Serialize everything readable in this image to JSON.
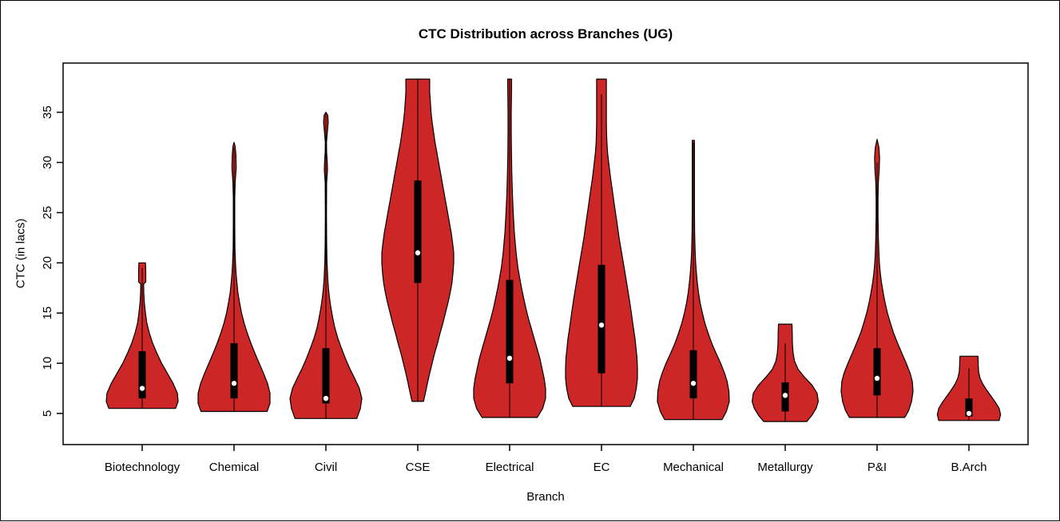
{
  "chart_data": {
    "type": "violin",
    "title": "CTC Distribution across Branches (UG)",
    "xlabel": "Branch",
    "ylabel": "CTC (in lacs)",
    "categories": [
      "Biotechnology",
      "Chemical",
      "Civil",
      "CSE",
      "Electrical",
      "EC",
      "Mechanical",
      "Metallurgy",
      "P&I",
      "B.Arch"
    ],
    "yticks": [
      5,
      10,
      15,
      20,
      25,
      30,
      35
    ],
    "ylim": [
      1.9,
      39.9
    ],
    "grid": false,
    "legend": null,
    "colors": {
      "violin_fill": "#CD2626",
      "violin_border": "#000000",
      "box": "#000000",
      "whisker": "#000000",
      "median_dot": "#ffffff",
      "frame": "#000000",
      "text": "#000000"
    },
    "series": [
      {
        "branch": "Biotechnology",
        "range": [
          5.5,
          20
        ],
        "q1": 6.5,
        "q3": 11.2,
        "median": 7.5,
        "whiskers": [
          5.5,
          19.5
        ],
        "profile": [
          [
            5.5,
            0.93
          ],
          [
            6.2,
            1.0
          ],
          [
            7.0,
            0.98
          ],
          [
            8,
            0.86
          ],
          [
            9,
            0.7
          ],
          [
            10,
            0.54
          ],
          [
            11,
            0.41
          ],
          [
            12,
            0.29
          ],
          [
            13,
            0.2
          ],
          [
            14,
            0.13
          ],
          [
            15,
            0.09
          ],
          [
            16,
            0.06
          ],
          [
            17,
            0.045
          ],
          [
            17.9,
            0.04
          ],
          [
            18.1,
            0.1
          ],
          [
            19.2,
            0.1
          ],
          [
            20,
            0.09
          ]
        ]
      },
      {
        "branch": "Chemical",
        "range": [
          5.2,
          32
        ],
        "q1": 6.5,
        "q3": 12,
        "median": 8,
        "whiskers": [
          5.2,
          31.5
        ],
        "profile": [
          [
            5.2,
            0.92
          ],
          [
            6,
            1.0
          ],
          [
            7,
            1.0
          ],
          [
            8,
            0.93
          ],
          [
            9,
            0.82
          ],
          [
            10,
            0.7
          ],
          [
            11,
            0.58
          ],
          [
            12,
            0.47
          ],
          [
            13,
            0.37
          ],
          [
            14,
            0.28
          ],
          [
            15,
            0.21
          ],
          [
            16,
            0.155
          ],
          [
            17,
            0.11
          ],
          [
            18,
            0.08
          ],
          [
            19,
            0.055
          ],
          [
            20,
            0.04
          ],
          [
            21.5,
            0.025
          ],
          [
            24,
            0.02
          ],
          [
            26.5,
            0.02
          ],
          [
            28,
            0.03
          ],
          [
            29.5,
            0.06
          ],
          [
            30.8,
            0.05
          ],
          [
            31.6,
            0.03
          ],
          [
            32,
            0.0
          ]
        ]
      },
      {
        "branch": "Civil",
        "range": [
          4.5,
          35
        ],
        "q1": 6,
        "q3": 11.5,
        "median": 6.5,
        "whiskers": [
          4.5,
          34.8
        ],
        "profile": [
          [
            4.5,
            0.86
          ],
          [
            5.5,
            0.96
          ],
          [
            6.5,
            1.0
          ],
          [
            7.5,
            0.93
          ],
          [
            8.5,
            0.8
          ],
          [
            9.5,
            0.66
          ],
          [
            10.5,
            0.54
          ],
          [
            11.5,
            0.43
          ],
          [
            12.5,
            0.33
          ],
          [
            13.5,
            0.25
          ],
          [
            14.5,
            0.19
          ],
          [
            15.5,
            0.14
          ],
          [
            16.5,
            0.1
          ],
          [
            17.5,
            0.07
          ],
          [
            18.5,
            0.05
          ],
          [
            20,
            0.03
          ],
          [
            22,
            0.02
          ],
          [
            25,
            0.015
          ],
          [
            28,
            0.02
          ],
          [
            29.3,
            0.045
          ],
          [
            30.2,
            0.035
          ],
          [
            31,
            0.02
          ],
          [
            32,
            0.015
          ],
          [
            33,
            0.04
          ],
          [
            34,
            0.065
          ],
          [
            34.7,
            0.05
          ],
          [
            35,
            0.0
          ]
        ]
      },
      {
        "branch": "CSE",
        "range": [
          6.2,
          38.3
        ],
        "q1": 18,
        "q3": 28.2,
        "median": 21,
        "whiskers": [
          6.2,
          38.3
        ],
        "profile": [
          [
            6.2,
            0.16
          ],
          [
            7,
            0.21
          ],
          [
            8,
            0.27
          ],
          [
            9,
            0.33
          ],
          [
            10,
            0.4
          ],
          [
            11,
            0.47
          ],
          [
            12,
            0.55
          ],
          [
            13,
            0.62
          ],
          [
            14,
            0.7
          ],
          [
            15,
            0.77
          ],
          [
            16,
            0.84
          ],
          [
            17,
            0.9
          ],
          [
            18,
            0.95
          ],
          [
            19,
            0.98
          ],
          [
            20,
            1.0
          ],
          [
            21,
            1.0
          ],
          [
            22,
            0.97
          ],
          [
            23,
            0.93
          ],
          [
            24,
            0.88
          ],
          [
            25,
            0.83
          ],
          [
            26,
            0.78
          ],
          [
            27,
            0.73
          ],
          [
            28,
            0.68
          ],
          [
            29,
            0.63
          ],
          [
            30,
            0.58
          ],
          [
            31,
            0.53
          ],
          [
            32,
            0.48
          ],
          [
            33,
            0.44
          ],
          [
            34,
            0.4
          ],
          [
            35,
            0.37
          ],
          [
            36,
            0.35
          ],
          [
            37,
            0.33
          ],
          [
            38.3,
            0.33
          ]
        ]
      },
      {
        "branch": "Electrical",
        "range": [
          4.6,
          38.3
        ],
        "q1": 8,
        "q3": 18.3,
        "median": 10.5,
        "whiskers": [
          4.6,
          38.3
        ],
        "profile": [
          [
            4.6,
            0.77
          ],
          [
            5.5,
            0.92
          ],
          [
            6.5,
            1.0
          ],
          [
            7.5,
            1.0
          ],
          [
            8.5,
            0.96
          ],
          [
            9.5,
            0.9
          ],
          [
            10.5,
            0.84
          ],
          [
            11.5,
            0.76
          ],
          [
            12.5,
            0.68
          ],
          [
            13.5,
            0.6
          ],
          [
            14.5,
            0.52
          ],
          [
            15.5,
            0.45
          ],
          [
            16.5,
            0.39
          ],
          [
            17.5,
            0.33
          ],
          [
            18.5,
            0.28
          ],
          [
            19.5,
            0.23
          ],
          [
            21,
            0.18
          ],
          [
            23,
            0.13
          ],
          [
            25,
            0.1
          ],
          [
            27,
            0.075
          ],
          [
            29,
            0.06
          ],
          [
            31,
            0.05
          ],
          [
            33,
            0.045
          ],
          [
            35,
            0.045
          ],
          [
            36.5,
            0.05
          ],
          [
            38.3,
            0.055
          ]
        ]
      },
      {
        "branch": "EC",
        "range": [
          5.7,
          38.3
        ],
        "q1": 9,
        "q3": 19.8,
        "median": 13.8,
        "whiskers": [
          5.7,
          36.8
        ],
        "profile": [
          [
            5.7,
            0.8
          ],
          [
            6.5,
            0.91
          ],
          [
            7.5,
            0.97
          ],
          [
            8.5,
            1.0
          ],
          [
            9.5,
            1.0
          ],
          [
            10.5,
            0.99
          ],
          [
            11.5,
            0.96
          ],
          [
            12.5,
            0.93
          ],
          [
            13.5,
            0.89
          ],
          [
            15,
            0.83
          ],
          [
            16.5,
            0.77
          ],
          [
            18,
            0.7
          ],
          [
            19.5,
            0.63
          ],
          [
            21,
            0.56
          ],
          [
            22.5,
            0.49
          ],
          [
            24,
            0.43
          ],
          [
            25.5,
            0.37
          ],
          [
            27,
            0.31
          ],
          [
            28.5,
            0.25
          ],
          [
            30,
            0.2
          ],
          [
            31,
            0.17
          ],
          [
            32,
            0.15
          ],
          [
            33,
            0.14
          ],
          [
            34,
            0.135
          ],
          [
            35.5,
            0.135
          ],
          [
            37,
            0.135
          ],
          [
            38.3,
            0.135
          ]
        ]
      },
      {
        "branch": "Mechanical",
        "range": [
          4.4,
          32.2
        ],
        "q1": 6.5,
        "q3": 11.3,
        "median": 8,
        "whiskers": [
          4.4,
          32
        ],
        "profile": [
          [
            4.4,
            0.8
          ],
          [
            5.2,
            0.92
          ],
          [
            6.2,
            1.0
          ],
          [
            7.2,
            0.99
          ],
          [
            8.2,
            0.94
          ],
          [
            9,
            0.87
          ],
          [
            10,
            0.76
          ],
          [
            11,
            0.63
          ],
          [
            12,
            0.51
          ],
          [
            13,
            0.41
          ],
          [
            14,
            0.32
          ],
          [
            15,
            0.25
          ],
          [
            16,
            0.19
          ],
          [
            17,
            0.145
          ],
          [
            18,
            0.11
          ],
          [
            19,
            0.085
          ],
          [
            20,
            0.065
          ],
          [
            21,
            0.05
          ],
          [
            22,
            0.042
          ],
          [
            23,
            0.036
          ],
          [
            25,
            0.032
          ],
          [
            27,
            0.03
          ],
          [
            29,
            0.03
          ],
          [
            31,
            0.03
          ],
          [
            32.2,
            0.028
          ]
        ]
      },
      {
        "branch": "Metallurgy",
        "range": [
          4.2,
          13.9
        ],
        "q1": 5.2,
        "q3": 8.1,
        "median": 6.8,
        "whiskers": [
          4.2,
          12
        ],
        "profile": [
          [
            4.2,
            0.6
          ],
          [
            4.8,
            0.74
          ],
          [
            5.5,
            0.86
          ],
          [
            6.2,
            0.92
          ],
          [
            7,
            0.89
          ],
          [
            7.8,
            0.75
          ],
          [
            8.6,
            0.54
          ],
          [
            9.4,
            0.36
          ],
          [
            10.2,
            0.26
          ],
          [
            11,
            0.22
          ],
          [
            12,
            0.2
          ],
          [
            13,
            0.195
          ],
          [
            13.9,
            0.19
          ]
        ]
      },
      {
        "branch": "P&I",
        "range": [
          4.6,
          32.3
        ],
        "q1": 6.8,
        "q3": 11.5,
        "median": 8.5,
        "whiskers": [
          4.6,
          30
        ],
        "profile": [
          [
            4.6,
            0.77
          ],
          [
            5.3,
            0.88
          ],
          [
            6.2,
            0.96
          ],
          [
            7.2,
            1.0
          ],
          [
            8.2,
            0.98
          ],
          [
            9,
            0.92
          ],
          [
            10,
            0.81
          ],
          [
            11,
            0.69
          ],
          [
            12,
            0.57
          ],
          [
            13,
            0.46
          ],
          [
            14,
            0.37
          ],
          [
            15,
            0.29
          ],
          [
            16,
            0.225
          ],
          [
            17,
            0.17
          ],
          [
            18,
            0.125
          ],
          [
            19,
            0.09
          ],
          [
            20,
            0.065
          ],
          [
            21,
            0.05
          ],
          [
            22.5,
            0.035
          ],
          [
            24.5,
            0.027
          ],
          [
            26.5,
            0.027
          ],
          [
            28,
            0.035
          ],
          [
            29.3,
            0.06
          ],
          [
            30.5,
            0.068
          ],
          [
            31.5,
            0.05
          ],
          [
            32.3,
            0.0
          ]
        ]
      },
      {
        "branch": "B.Arch",
        "range": [
          4.3,
          10.7
        ],
        "q1": 4.7,
        "q3": 6.5,
        "median": 5.0,
        "whiskers": [
          4.3,
          9.5
        ],
        "profile": [
          [
            4.3,
            0.84
          ],
          [
            4.9,
            0.88
          ],
          [
            5.5,
            0.84
          ],
          [
            6.1,
            0.74
          ],
          [
            6.7,
            0.62
          ],
          [
            7.3,
            0.5
          ],
          [
            7.9,
            0.39
          ],
          [
            8.5,
            0.31
          ],
          [
            9.1,
            0.27
          ],
          [
            9.7,
            0.26
          ],
          [
            10.3,
            0.255
          ],
          [
            10.7,
            0.25
          ]
        ]
      }
    ]
  }
}
